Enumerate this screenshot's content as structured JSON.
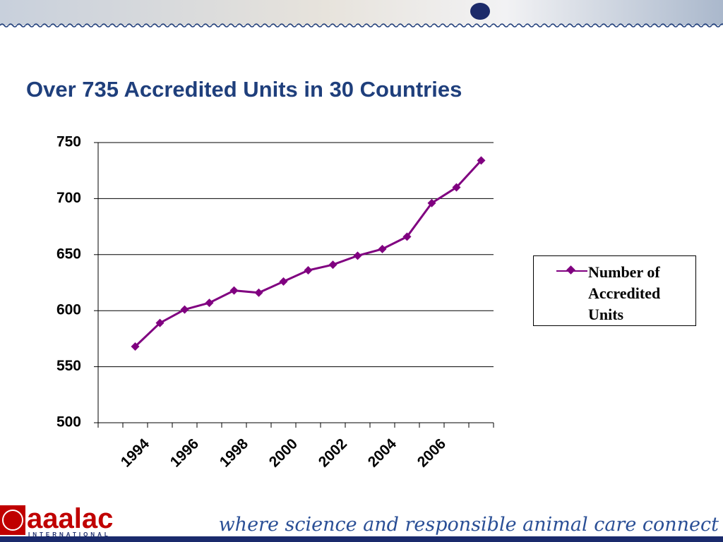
{
  "chart_data": {
    "type": "line",
    "title": "Over 735 Accredited Units in 30 Countries",
    "categories": [
      null,
      "1994",
      null,
      "1996",
      null,
      "1998",
      null,
      "2000",
      null,
      "2002",
      null,
      "2004",
      null,
      "2006",
      null,
      null
    ],
    "series": [
      {
        "name": "Number of Accredited Units",
        "color": "#800080",
        "values": [
          null,
          568,
          589,
          601,
          607,
          618,
          616,
          626,
          636,
          641,
          649,
          655,
          666,
          696,
          710,
          734
        ]
      }
    ],
    "ylim": [
      500,
      750
    ],
    "yticks": [
      500,
      550,
      600,
      650,
      700,
      750
    ],
    "grid": true,
    "legend": "right"
  },
  "footer": {
    "logo": "aaalac",
    "logo_sub": "INTERNATIONAL",
    "tagline": "where science and responsible animal care connect"
  }
}
